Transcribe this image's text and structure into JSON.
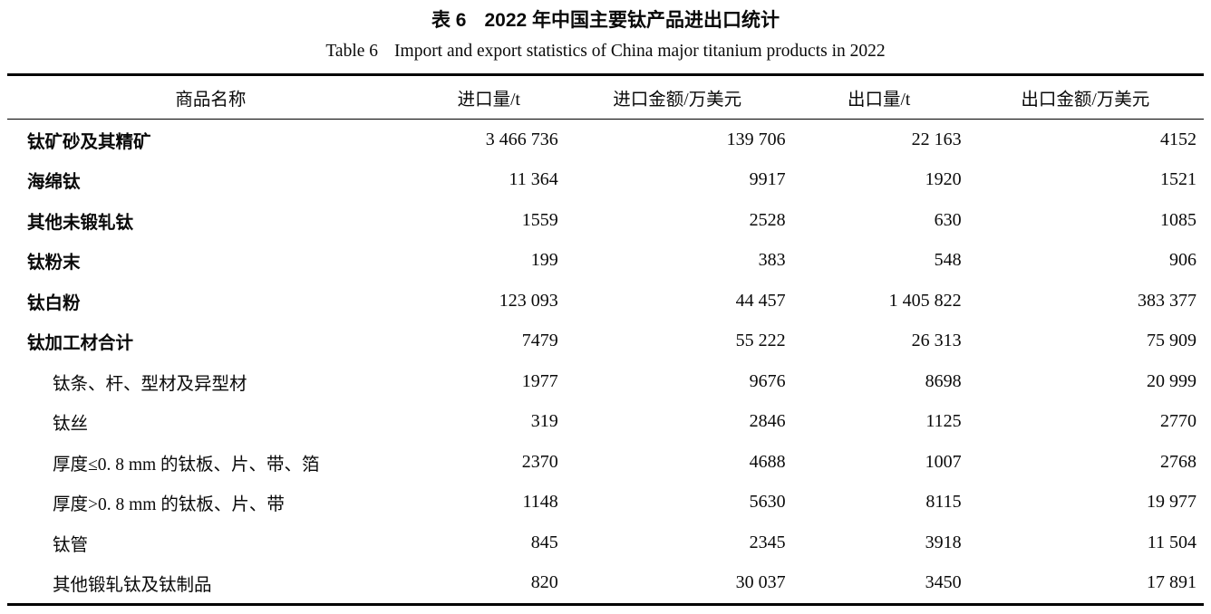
{
  "caption": {
    "zh_label": "表 6",
    "zh_text": "2022 年中国主要钛产品进出口统计",
    "en_label": "Table 6",
    "en_text": "Import and export statistics of China major titanium products in 2022"
  },
  "table": {
    "columns": [
      "商品名称",
      "进口量/t",
      "进口金额/万美元",
      "出口量/t",
      "出口金额/万美元"
    ],
    "rows": [
      {
        "name": "钛矿砂及其精矿",
        "level": "main",
        "import_qty": "3 466 736",
        "import_value": "139 706",
        "export_qty": "22 163",
        "export_value": "4152"
      },
      {
        "name": "海绵钛",
        "level": "main",
        "import_qty": "11 364",
        "import_value": "9917",
        "export_qty": "1920",
        "export_value": "1521"
      },
      {
        "name": "其他未锻轧钛",
        "level": "main",
        "import_qty": "1559",
        "import_value": "2528",
        "export_qty": "630",
        "export_value": "1085"
      },
      {
        "name": "钛粉末",
        "level": "main",
        "import_qty": "199",
        "import_value": "383",
        "export_qty": "548",
        "export_value": "906"
      },
      {
        "name": "钛白粉",
        "level": "main",
        "import_qty": "123 093",
        "import_value": "44 457",
        "export_qty": "1 405 822",
        "export_value": "383 377"
      },
      {
        "name": "钛加工材合计",
        "level": "main",
        "import_qty": "7479",
        "import_value": "55 222",
        "export_qty": "26 313",
        "export_value": "75 909"
      },
      {
        "name": "钛条、杆、型材及异型材",
        "level": "sub",
        "import_qty": "1977",
        "import_value": "9676",
        "export_qty": "8698",
        "export_value": "20 999"
      },
      {
        "name": "钛丝",
        "level": "sub",
        "import_qty": "319",
        "import_value": "2846",
        "export_qty": "1125",
        "export_value": "2770"
      },
      {
        "name": "厚度≤0. 8 mm 的钛板、片、带、箔",
        "level": "sub",
        "import_qty": "2370",
        "import_value": "4688",
        "export_qty": "1007",
        "export_value": "2768"
      },
      {
        "name": "厚度>0. 8 mm 的钛板、片、带",
        "level": "sub",
        "import_qty": "1148",
        "import_value": "5630",
        "export_qty": "8115",
        "export_value": "19 977"
      },
      {
        "name": "钛管",
        "level": "sub",
        "import_qty": "845",
        "import_value": "2345",
        "export_qty": "3918",
        "export_value": "11 504"
      },
      {
        "name": "其他锻轧钛及钛制品",
        "level": "sub",
        "import_qty": "820",
        "import_value": "30 037",
        "export_qty": "3450",
        "export_value": "17 891"
      }
    ]
  }
}
